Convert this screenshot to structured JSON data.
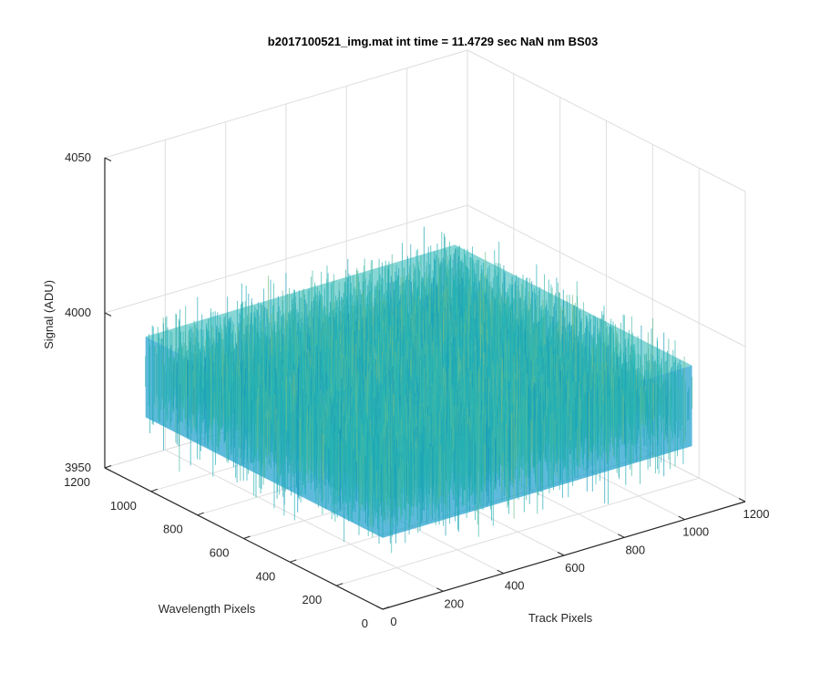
{
  "window": {
    "background": "#ffffff"
  },
  "chart_data": {
    "type": "surface3d",
    "title": "b2017100521_img.mat int time = 11.4729 sec  NaN nm BS03",
    "xlabel": "Track Pixels",
    "ylabel": "Wavelength Pixels",
    "zlabel": "Signal (ADU)",
    "xlim": [
      0,
      1200
    ],
    "ylim": [
      0,
      1200
    ],
    "zlim": [
      3950,
      4050
    ],
    "xticks": [
      "0",
      "200",
      "400",
      "600",
      "800",
      "1000",
      "1200"
    ],
    "yticks": [
      "0",
      "200",
      "400",
      "600",
      "800",
      "1000",
      "1200"
    ],
    "zticks": [
      "3950",
      "4000",
      "4050"
    ],
    "grid": true,
    "colormap": "parula",
    "colors": {
      "low": "#0072BD",
      "mid": "#26B5B5",
      "high": "#D9C94A",
      "grid": "#dedede",
      "axis": "#262626"
    },
    "surface": {
      "x_extent": [
        0,
        1024
      ],
      "y_extent": [
        0,
        1024
      ],
      "mean_signal": 3987,
      "noise_range": [
        3960,
        4015
      ]
    }
  }
}
